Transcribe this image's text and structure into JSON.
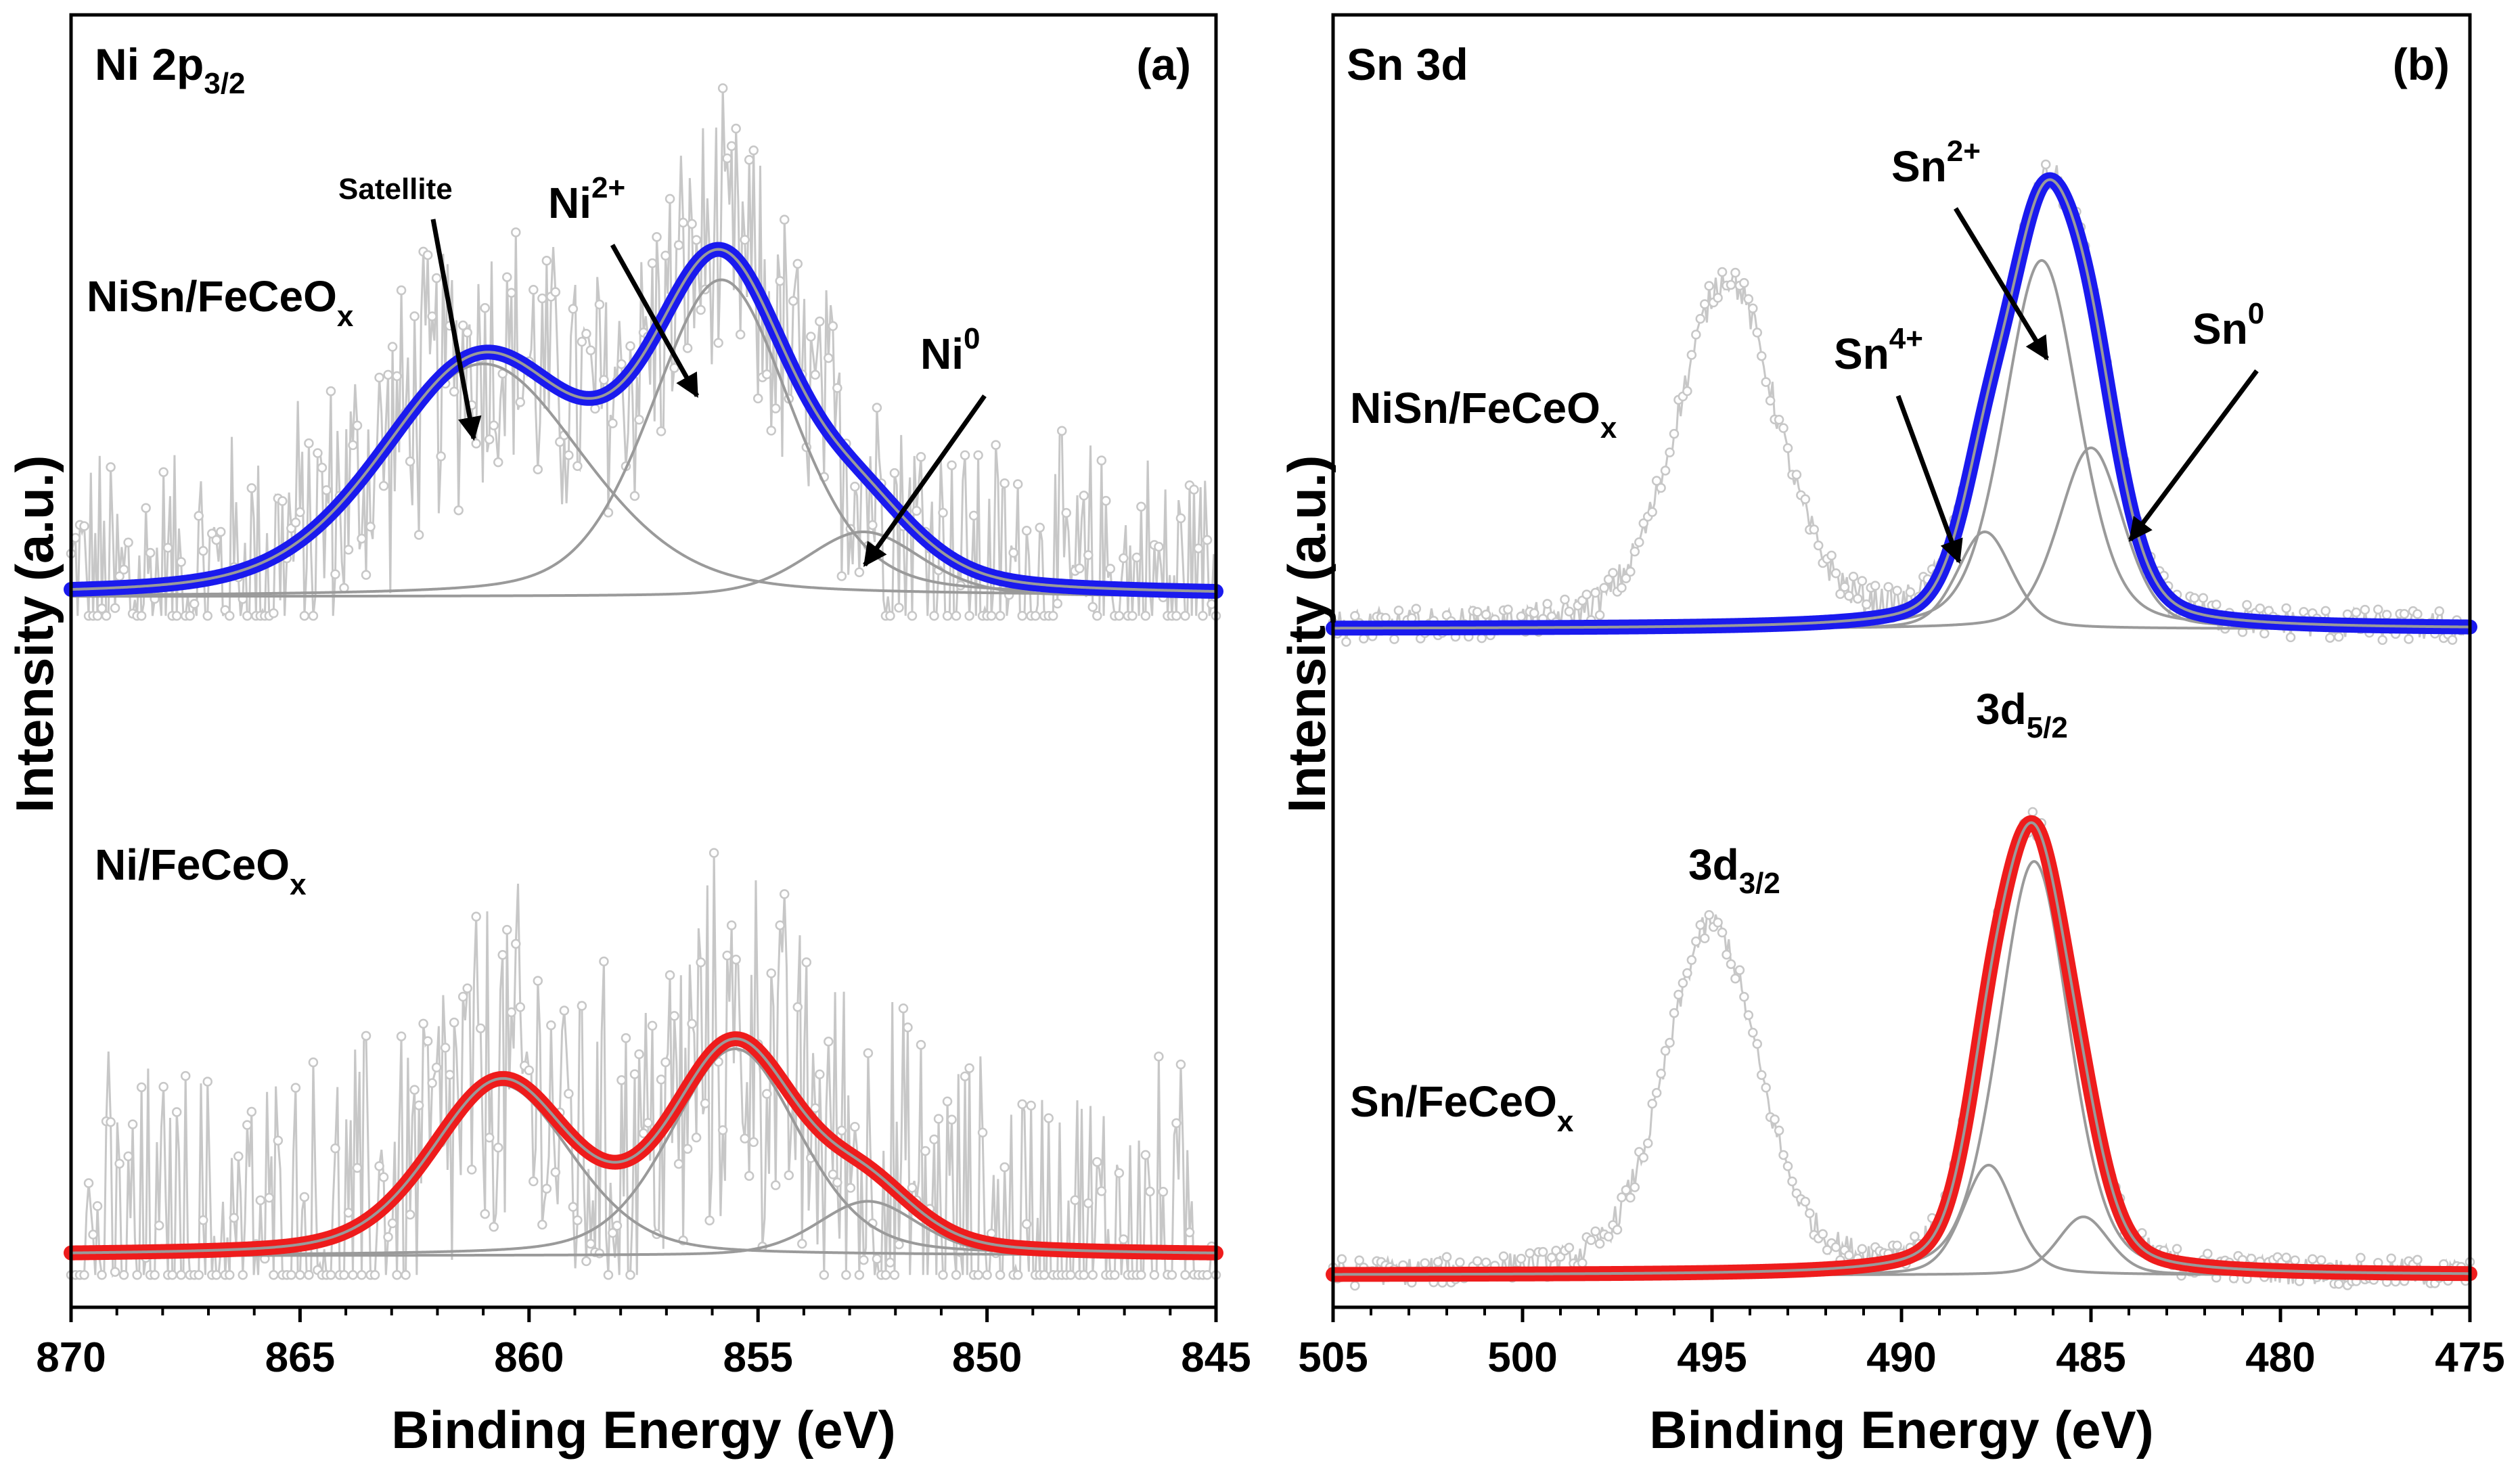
{
  "colors": {
    "fit_top": "#1a1aee",
    "fit_bottom": "#ee1c1c",
    "raw": "#c7c7c7",
    "component": "#9a9a9a",
    "axis": "#000000"
  },
  "chart_data": [
    {
      "type": "line",
      "id": "a",
      "panel_label": "(a)",
      "title": {
        "main": "Ni 2p",
        "sub": "3/2"
      },
      "xlabel": "Binding Energy (eV)",
      "ylabel": "Intensity (a.u.)",
      "xlim": [
        870,
        845
      ],
      "xticks": [
        "870",
        "865",
        "860",
        "855",
        "850",
        "845"
      ],
      "ylim": [
        0,
        10
      ],
      "y_ticks_shown": false,
      "series": [
        {
          "name": "NiSn/FeCeOx",
          "label_main": "NiSn/FeCeO",
          "label_sub": "x",
          "offset": 5.5,
          "baseline_raw": 0.0,
          "fit_color": "blue",
          "noise": 1.3,
          "components": [
            {
              "center": 861.0,
              "height": 1.8,
              "fwhm": 5.2
            },
            {
              "center": 855.8,
              "height": 2.45,
              "fwhm": 3.6
            },
            {
              "center": 852.7,
              "height": 0.5,
              "fwhm": 3.0
            }
          ]
        },
        {
          "name": "Ni/FeCeOx",
          "label_main": "Ni/FeCeO",
          "label_sub": "x",
          "offset": 0.4,
          "baseline_raw": 0.1,
          "fit_color": "red",
          "noise": 1.7,
          "components": [
            {
              "center": 860.6,
              "height": 1.32,
              "fwhm": 3.6
            },
            {
              "center": 855.5,
              "height": 1.6,
              "fwhm": 3.3
            },
            {
              "center": 852.6,
              "height": 0.42,
              "fwhm": 2.6
            }
          ]
        }
      ],
      "annotations": [
        {
          "text": "Satellite",
          "sup": "",
          "target_x": 861.0,
          "target_series": 0,
          "small": true
        },
        {
          "text": "Ni",
          "sup": "2+",
          "target_x": 856.4,
          "target_series": 0,
          "small": false
        },
        {
          "text": "Ni",
          "sup": "0",
          "target_x": 852.5,
          "target_series": 0,
          "small": false
        }
      ]
    },
    {
      "type": "line",
      "id": "b",
      "panel_label": "(b)",
      "title": {
        "main": "Sn 3d",
        "sub": ""
      },
      "xlabel": "Binding Energy (eV)",
      "ylabel": "Intensity (a.u.)",
      "xlim": [
        505,
        475
      ],
      "xticks": [
        "505",
        "500",
        "495",
        "490",
        "485",
        "480",
        "475"
      ],
      "ylim": [
        0,
        10
      ],
      "y_ticks_shown": false,
      "series": [
        {
          "name": "NiSn/FeCeOx",
          "label_main": "NiSn/FeCeO",
          "label_sub": "x",
          "offset": 5.25,
          "fit_color": "blue",
          "noise": 0.25,
          "components": [
            {
              "center": 487.8,
              "height": 0.75,
              "fwhm": 1.7
            },
            {
              "center": 486.3,
              "height": 2.85,
              "fwhm": 2.3
            },
            {
              "center": 485.0,
              "height": 1.4,
              "fwhm": 2.0
            }
          ],
          "doublet_peak": {
            "center": 494.6,
            "height": 2.7,
            "fwhm": 3.1
          }
        },
        {
          "name": "Sn/FeCeOx",
          "label_main": "Sn/FeCeO",
          "label_sub": "x",
          "offset": 0.25,
          "fit_color": "red",
          "noise": 0.22,
          "components": [
            {
              "center": 487.7,
              "height": 0.85,
              "fwhm": 1.6
            },
            {
              "center": 486.5,
              "height": 3.2,
              "fwhm": 2.2
            },
            {
              "center": 485.2,
              "height": 0.45,
              "fwhm": 1.6
            }
          ],
          "doublet_peak": {
            "center": 495.0,
            "height": 2.7,
            "fwhm": 2.9
          }
        }
      ],
      "annotations": [
        {
          "text": "Sn",
          "sup": "2+",
          "target_x": 485.8,
          "target_series": 0,
          "small": false
        },
        {
          "text": "Sn",
          "sup": "4+",
          "target_x": 488.5,
          "target_series": 0,
          "small": false
        },
        {
          "text": "Sn",
          "sup": "0",
          "target_x": 484.3,
          "target_series": 0,
          "small": false
        },
        {
          "text": "3d",
          "sub": "5/2",
          "target_x": 486.4,
          "target_series": 1,
          "small": false
        },
        {
          "text": "3d",
          "sub": "3/2",
          "target_x": 495.0,
          "target_series": 1,
          "small": false
        }
      ]
    }
  ]
}
